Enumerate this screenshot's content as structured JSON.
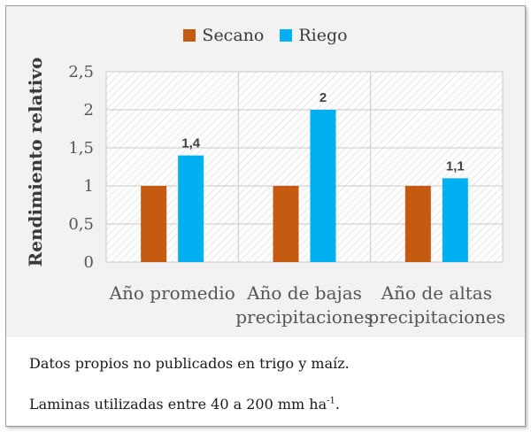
{
  "chart_data": {
    "type": "bar",
    "categories": [
      [
        "Año promedio"
      ],
      [
        "Año de bajas",
        "precipitaciones"
      ],
      [
        "Año de altas",
        "precipitaciones"
      ]
    ],
    "series": [
      {
        "name": "Secano",
        "color": "#c55a11",
        "values": [
          1,
          1,
          1
        ],
        "data_labels": [
          null,
          null,
          null
        ]
      },
      {
        "name": "Riego",
        "color": "#00b0f0",
        "values": [
          1.4,
          2,
          1.1
        ],
        "data_labels": [
          "1,4",
          "2",
          "1,1"
        ]
      }
    ],
    "ylabel": "Rendimiento relativo",
    "ylim": [
      0,
      2.5
    ],
    "yticks": [
      0,
      0.5,
      1,
      1.5,
      2,
      2.5
    ],
    "ytick_labels": [
      "0",
      "0,5",
      "1",
      "1,5",
      "2",
      "2,5"
    ],
    "grid": true,
    "legend_position": "top"
  },
  "notes": {
    "line1": "Datos propios no publicados en trigo y maíz.",
    "line2_text": "Laminas utilizadas entre 40 a 200 mm ha",
    "line2_sup": "-1",
    "line2_end": "."
  }
}
